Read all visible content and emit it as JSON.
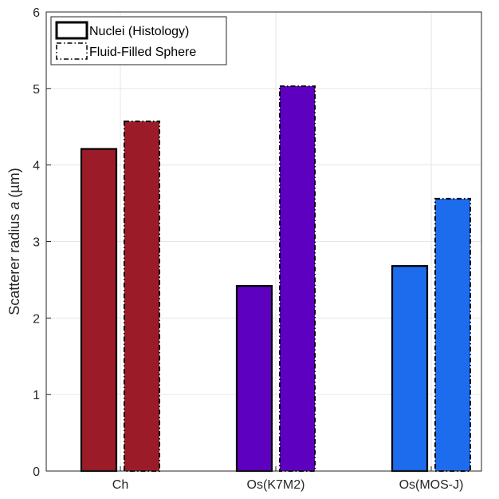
{
  "chart_data": {
    "type": "bar",
    "categories": [
      "Ch",
      "Os(K7M2)",
      "Os(MOS-J)"
    ],
    "series": [
      {
        "name": "Nuclei (Histology)",
        "values": [
          4.21,
          2.42,
          2.68
        ],
        "line_style": "solid"
      },
      {
        "name": "Fluid-Filled Sphere",
        "values": [
          4.57,
          5.03,
          3.56
        ],
        "line_style": "dash-dot"
      }
    ],
    "category_colors": [
      "#9b1c28",
      "#5d00c0",
      "#1c6ced"
    ],
    "ylabel_prefix": "Scatterer radius ",
    "ylabel_var": "a",
    "ylabel_unit": " (µm)",
    "ylim": [
      0,
      6
    ],
    "yticks": [
      "0",
      "1",
      "2",
      "3",
      "4",
      "5",
      "6"
    ],
    "grid": true,
    "legend_position": "top-left"
  }
}
